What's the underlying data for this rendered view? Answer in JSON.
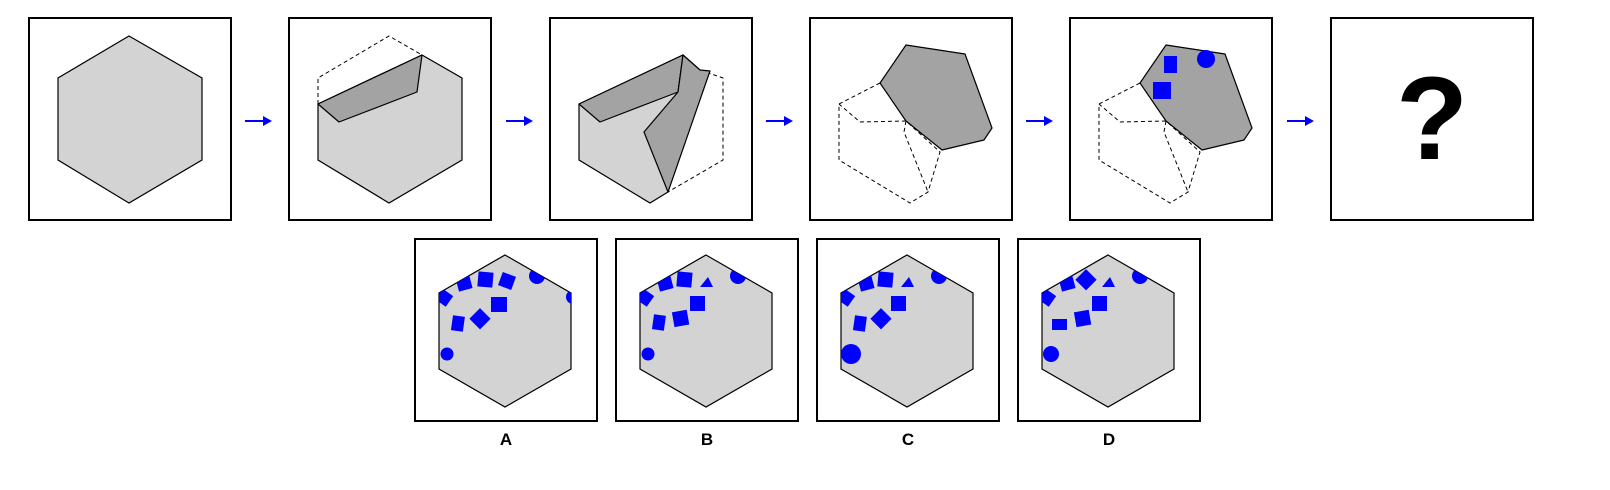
{
  "question": {
    "steps": [
      {
        "id": 1,
        "content": "unfolded-hexagon"
      },
      {
        "id": 2,
        "content": "fold-1"
      },
      {
        "id": 3,
        "content": "fold-2"
      },
      {
        "id": 4,
        "content": "fold-3"
      },
      {
        "id": 5,
        "content": "punched-holes"
      },
      {
        "id": 6,
        "content": "unknown"
      }
    ],
    "unknown_symbol": "?",
    "colors": {
      "paper": "#d3d3d3",
      "folded": "#a3a3a3",
      "hole": "#0000ff",
      "arrow": "#0000ff"
    }
  },
  "options": [
    {
      "label": "A"
    },
    {
      "label": "B"
    },
    {
      "label": "C"
    },
    {
      "label": "D"
    }
  ]
}
